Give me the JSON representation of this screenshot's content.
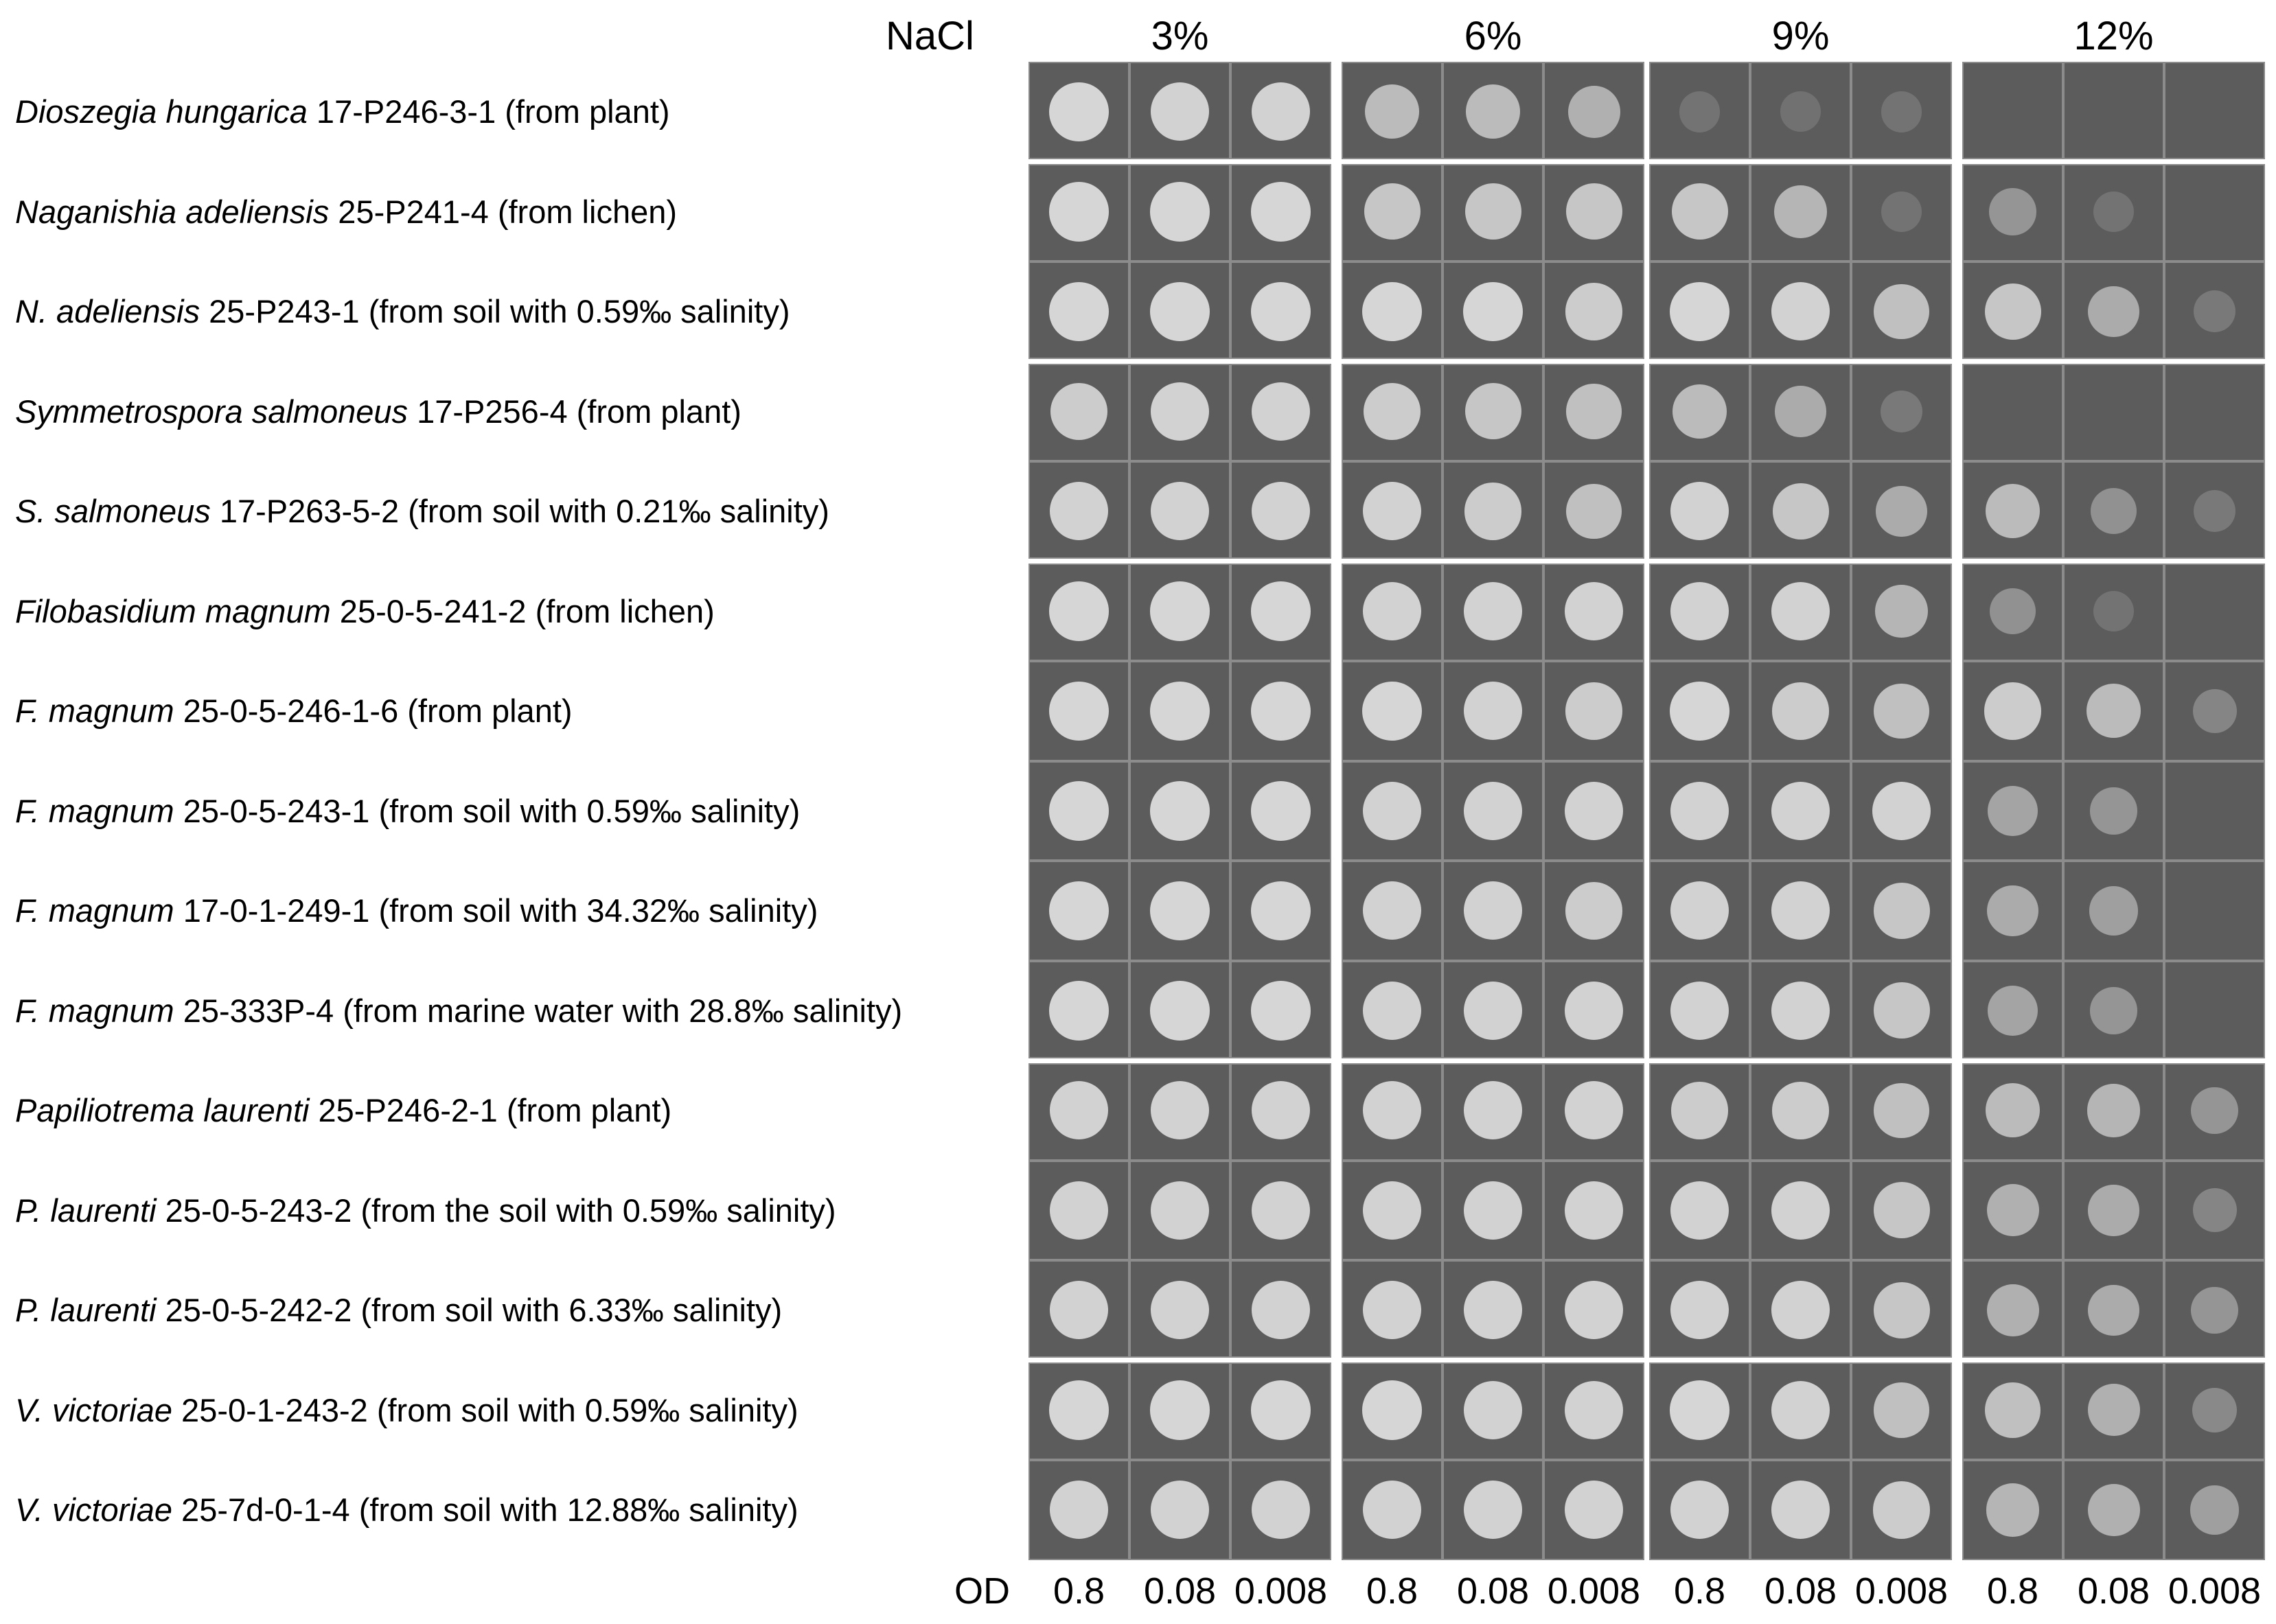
{
  "header": {
    "treatment_label": "NaCl",
    "concentrations": [
      "3%",
      "6%",
      "9%",
      "12%"
    ]
  },
  "strains": [
    {
      "species": "Dioszegia hungarica",
      "rest": " 17-P246-3-1 (from plant)",
      "spots": [
        [
          0.95,
          0.9,
          0.9
        ],
        [
          0.7,
          0.7,
          0.6
        ],
        [
          0.05,
          0.02,
          0.05
        ],
        [
          0,
          0,
          0
        ]
      ]
    },
    {
      "species": "Naganishia adeliensis",
      "rest": " 25-P241-4 (from lichen)",
      "spots": [
        [
          0.95,
          0.95,
          0.95
        ],
        [
          0.8,
          0.8,
          0.8
        ],
        [
          0.8,
          0.65,
          0.03
        ],
        [
          0.35,
          0.03,
          0
        ]
      ]
    },
    {
      "species": "N. adeliensis",
      "rest": " 25-P243-1 (from soil with 0.59‰ salinity)",
      "spots": [
        [
          0.95,
          0.95,
          0.95
        ],
        [
          0.95,
          0.95,
          0.85
        ],
        [
          0.95,
          0.9,
          0.75
        ],
        [
          0.8,
          0.55,
          0.1
        ]
      ]
    },
    {
      "species": "Symmetrospora salmoneus",
      "rest": " 17-P256-4 (from plant)",
      "spots": [
        [
          0.85,
          0.9,
          0.9
        ],
        [
          0.85,
          0.8,
          0.75
        ],
        [
          0.7,
          0.55,
          0.1
        ],
        [
          0,
          0,
          0
        ]
      ]
    },
    {
      "species": "S. salmoneus",
      "rest": " 17-P263-5-2 (from soil with 0.21‰ salinity)",
      "spots": [
        [
          0.9,
          0.9,
          0.9
        ],
        [
          0.9,
          0.85,
          0.75
        ],
        [
          0.9,
          0.8,
          0.55
        ],
        [
          0.7,
          0.3,
          0.1
        ]
      ]
    },
    {
      "species": "Filobasidium magnum",
      "rest": " 25-0-5-241-2 (from lichen)",
      "spots": [
        [
          0.95,
          0.95,
          0.95
        ],
        [
          0.9,
          0.9,
          0.9
        ],
        [
          0.9,
          0.9,
          0.65
        ],
        [
          0.3,
          0.05,
          0
        ]
      ]
    },
    {
      "species": "F. magnum",
      "rest": " 25-0-5-246-1-6 (from plant)",
      "spots": [
        [
          0.95,
          0.95,
          0.95
        ],
        [
          0.95,
          0.9,
          0.85
        ],
        [
          0.95,
          0.85,
          0.75
        ],
        [
          0.85,
          0.7,
          0.2
        ]
      ]
    },
    {
      "species": "F. magnum",
      "rest": " 25-0-5-243-1 (from soil with 0.59‰ salinity)",
      "spots": [
        [
          0.95,
          0.95,
          0.95
        ],
        [
          0.9,
          0.9,
          0.9
        ],
        [
          0.9,
          0.9,
          0.9
        ],
        [
          0.5,
          0.35,
          0
        ]
      ]
    },
    {
      "species": "F. magnum",
      "rest": " 17-0-1-249-1 (from soil with 34.32‰ salinity)",
      "spots": [
        [
          0.95,
          0.95,
          0.95
        ],
        [
          0.9,
          0.9,
          0.85
        ],
        [
          0.9,
          0.9,
          0.8
        ],
        [
          0.55,
          0.45,
          0
        ]
      ]
    },
    {
      "species": "F. magnum",
      "rest": " 25-333P-4 (from marine water with 28.8‰ salinity)",
      "spots": [
        [
          0.95,
          0.95,
          0.95
        ],
        [
          0.9,
          0.9,
          0.9
        ],
        [
          0.9,
          0.9,
          0.8
        ],
        [
          0.5,
          0.35,
          0
        ]
      ]
    },
    {
      "species": "Papiliotrema laurenti",
      "rest": " 25-P246-2-1 (from plant)",
      "spots": [
        [
          0.9,
          0.9,
          0.9
        ],
        [
          0.9,
          0.9,
          0.9
        ],
        [
          0.85,
          0.85,
          0.75
        ],
        [
          0.7,
          0.65,
          0.35
        ]
      ]
    },
    {
      "species": "P. laurenti",
      "rest": " 25-0-5-243-2 (from the soil with 0.59‰ salinity)",
      "spots": [
        [
          0.9,
          0.9,
          0.9
        ],
        [
          0.9,
          0.9,
          0.9
        ],
        [
          0.9,
          0.9,
          0.8
        ],
        [
          0.6,
          0.55,
          0.2
        ]
      ]
    },
    {
      "species": "P. laurenti",
      "rest": " 25-0-5-242-2 (from soil with 6.33‰ salinity)",
      "spots": [
        [
          0.9,
          0.9,
          0.9
        ],
        [
          0.9,
          0.9,
          0.9
        ],
        [
          0.9,
          0.9,
          0.8
        ],
        [
          0.6,
          0.55,
          0.35
        ]
      ]
    },
    {
      "species": "V. victoriae",
      "rest": " 25-0-1-243-2 (from soil with 0.59‰ salinity)",
      "spots": [
        [
          0.95,
          0.95,
          0.95
        ],
        [
          0.95,
          0.9,
          0.9
        ],
        [
          0.95,
          0.9,
          0.75
        ],
        [
          0.75,
          0.6,
          0.25
        ]
      ]
    },
    {
      "species": "V. victoriae",
      "rest": " 25-7d-0-1-4 (from soil with 12.88‰ salinity)",
      "spots": [
        [
          0.9,
          0.9,
          0.9
        ],
        [
          0.9,
          0.9,
          0.9
        ],
        [
          0.9,
          0.9,
          0.85
        ],
        [
          0.65,
          0.6,
          0.45
        ]
      ]
    }
  ],
  "groups": [
    [
      0
    ],
    [
      1,
      2
    ],
    [
      3,
      4
    ],
    [
      5,
      6,
      7,
      8,
      9
    ],
    [
      10,
      11,
      12
    ],
    [
      13,
      14
    ]
  ],
  "od": {
    "label": "OD",
    "values": [
      "0.8",
      "0.08",
      "0.008"
    ]
  },
  "colors": {
    "plate_background": "#5c5c5c",
    "colony": "#dcdcdc",
    "divider": "#8c8c8c"
  }
}
